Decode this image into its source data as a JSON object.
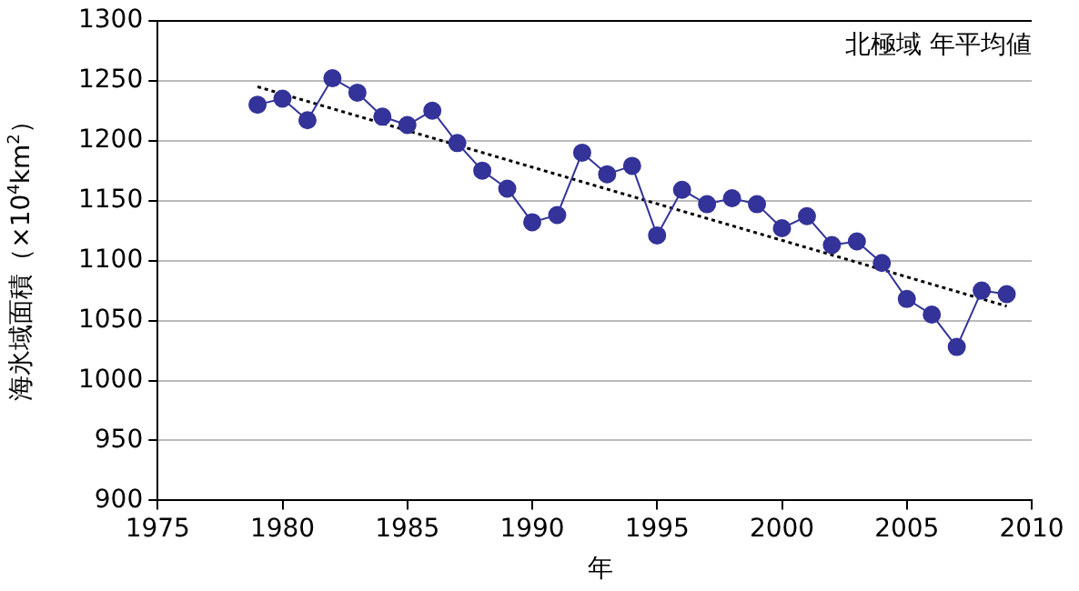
{
  "chart_data": {
    "type": "line",
    "xlabel": "年",
    "ylabel": "海氷域面積（×10$^{4}$km$^{2}$）",
    "annotations": [
      "北極域 年平均値"
    ],
    "x": [
      1979,
      1980,
      1981,
      1982,
      1983,
      1984,
      1985,
      1986,
      1987,
      1988,
      1989,
      1990,
      1991,
      1992,
      1993,
      1994,
      1995,
      1996,
      1997,
      1998,
      1999,
      2000,
      2001,
      2002,
      2003,
      2004,
      2005,
      2006,
      2007,
      2008,
      2009
    ],
    "series": [
      {
        "type": "line",
        "color": "#333399",
        "marker": "circle",
        "line_style": "solid",
        "values": [
          1230,
          1235,
          1217,
          1252,
          1240,
          1220,
          1213,
          1225,
          1198,
          1175,
          1160,
          1132,
          1138,
          1190,
          1172,
          1179,
          1121,
          1159,
          1147,
          1152,
          1147,
          1127,
          1137,
          1113,
          1116,
          1098,
          1068,
          1055,
          1028,
          1075,
          1072
        ]
      },
      {
        "type": "line",
        "color": "#000000",
        "marker": "none",
        "line_style": "dotted",
        "x": [
          1979,
          2009
        ],
        "values": [
          1245,
          1062
        ]
      }
    ],
    "xlim": [
      1975,
      2010
    ],
    "xticks": [
      1975,
      1980,
      1985,
      1990,
      1995,
      2000,
      2005,
      2010
    ],
    "ylim": [
      900,
      1300
    ],
    "yticks": [
      900,
      950,
      1000,
      1050,
      1100,
      1150,
      1200,
      1250,
      1300
    ],
    "grid": "y",
    "legend": false
  }
}
